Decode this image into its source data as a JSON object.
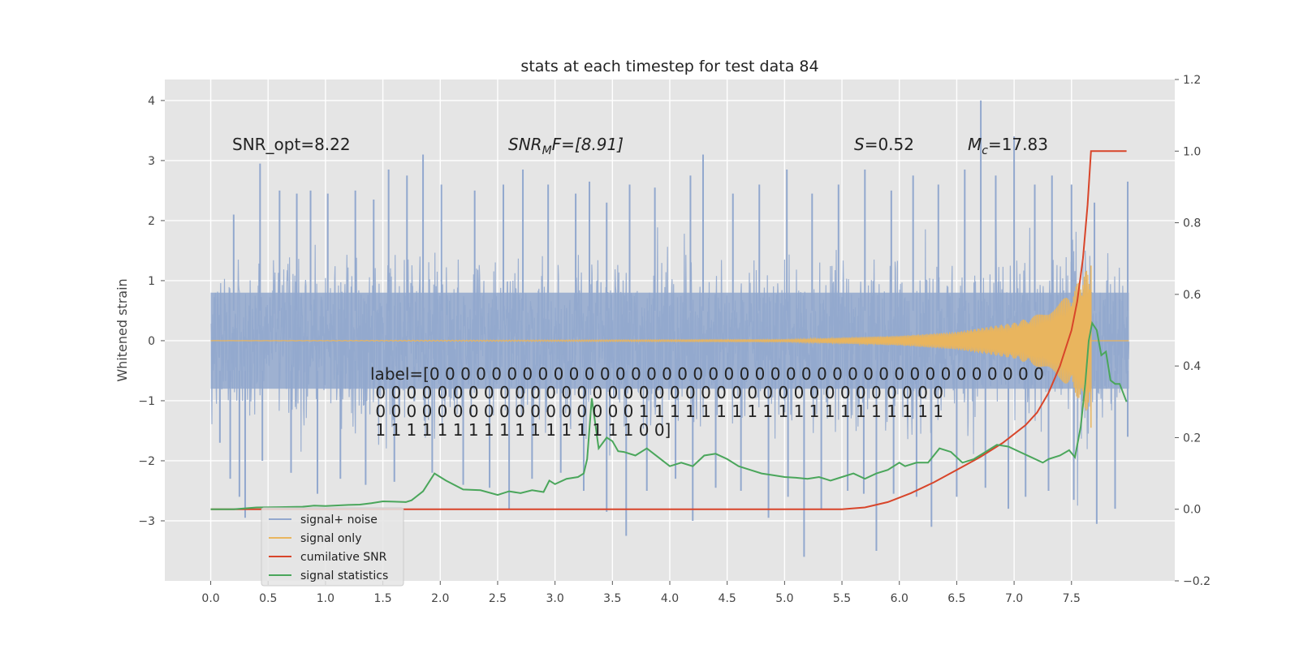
{
  "chart_data": {
    "type": "line",
    "title": "stats at each timestep for test data 84",
    "xlabel": "",
    "ylabel": "Whitened strain",
    "ylabel_right": "",
    "xlim": [
      -0.4,
      8.4
    ],
    "ylim": [
      -4.0,
      4.35
    ],
    "ylim_right": [
      -0.2,
      1.2
    ],
    "x_ticks": [
      0.0,
      0.5,
      1.0,
      1.5,
      2.0,
      2.5,
      3.0,
      3.5,
      4.0,
      4.5,
      5.0,
      5.5,
      6.0,
      6.5,
      7.0,
      7.5
    ],
    "x_tick_labels": [
      "0.0",
      "0.5",
      "1.0",
      "1.5",
      "2.0",
      "2.5",
      "3.0",
      "3.5",
      "4.0",
      "4.5",
      "5.0",
      "5.5",
      "6.0",
      "6.5",
      "7.0",
      "7.5"
    ],
    "y_ticks": [
      -3,
      -2,
      -1,
      0,
      1,
      2,
      3,
      4
    ],
    "y_tick_labels": [
      "−3",
      "−2",
      "−1",
      "0",
      "1",
      "2",
      "3",
      "4"
    ],
    "y_right_ticks": [
      -0.2,
      0.0,
      0.2,
      0.4,
      0.6,
      0.8,
      1.0,
      1.2
    ],
    "y_right_tick_labels": [
      "−0.2",
      "0.0",
      "0.2",
      "0.4",
      "0.6",
      "0.8",
      "1.0",
      "1.2"
    ],
    "grid": true,
    "legend_position": "lower-left",
    "annotations": {
      "snr_opt": "SNR_opt=8.22",
      "snr_mf_main": "SNR",
      "snr_mf_sub": "M",
      "snr_mf_rest": "F=[8.91]",
      "s_symbol": "S",
      "s_value": "=0.52",
      "mc_symbol": "M",
      "mc_sub": "c",
      "mc_value": "=17.83",
      "label_lines": [
        "label=[0 0 0 0 0 0 0 0 0 0 0 0 0 0 0 0 0 0 0 0 0 0 0 0 0 0 0 0 0 0 0 0 0 0 0 0 0 0 0 0",
        " 0 0 0 0 0 0 0 0 0 0 0 0 0 0 0 0 0 0 0 0 0 0 0 0 0 0 0 0 0 0 0 0 0 0 0 0 0",
        " 0 0 0 0 0 0 0 0 0 0 0 0 0 0 0 0 0 1 1 1 1 1 1 1 1 1 1 1 1 1 1 1 1 1 1 1 1",
        " 1 1 1 1 1 1 1 1 1 1 1 1 1 1 1 1 1 0 0]"
      ]
    },
    "series": [
      {
        "name": "signal+ noise",
        "color": "#92a8ce",
        "axis": "left",
        "style": "noise",
        "x_range": [
          0.0,
          8.0
        ],
        "envelope": [
          -1.0,
          1.0
        ],
        "peak_points": [
          {
            "x": 0.2,
            "y": 2.1
          },
          {
            "x": 0.43,
            "y": 2.95
          },
          {
            "x": 0.6,
            "y": 2.5
          },
          {
            "x": 0.75,
            "y": 2.45
          },
          {
            "x": 0.87,
            "y": 2.5
          },
          {
            "x": 1.02,
            "y": 2.45
          },
          {
            "x": 1.26,
            "y": 2.5
          },
          {
            "x": 1.42,
            "y": 2.35
          },
          {
            "x": 1.55,
            "y": 2.85
          },
          {
            "x": 1.71,
            "y": 2.75
          },
          {
            "x": 1.85,
            "y": 3.1
          },
          {
            "x": 2.01,
            "y": 2.6
          },
          {
            "x": 2.3,
            "y": 2.5
          },
          {
            "x": 2.55,
            "y": 2.6
          },
          {
            "x": 2.72,
            "y": 2.85
          },
          {
            "x": 2.94,
            "y": 2.6
          },
          {
            "x": 3.18,
            "y": 2.45
          },
          {
            "x": 3.3,
            "y": 2.65
          },
          {
            "x": 3.45,
            "y": 2.3
          },
          {
            "x": 3.65,
            "y": 2.6
          },
          {
            "x": 3.87,
            "y": 2.55
          },
          {
            "x": 4.18,
            "y": 2.75
          },
          {
            "x": 4.29,
            "y": 3.1
          },
          {
            "x": 4.55,
            "y": 2.45
          },
          {
            "x": 4.78,
            "y": 2.6
          },
          {
            "x": 5.02,
            "y": 2.85
          },
          {
            "x": 5.24,
            "y": 2.45
          },
          {
            "x": 5.47,
            "y": 2.6
          },
          {
            "x": 5.7,
            "y": 2.85
          },
          {
            "x": 5.93,
            "y": 2.5
          },
          {
            "x": 6.12,
            "y": 2.75
          },
          {
            "x": 6.34,
            "y": 2.6
          },
          {
            "x": 6.57,
            "y": 2.85
          },
          {
            "x": 6.71,
            "y": 4.0
          },
          {
            "x": 6.84,
            "y": 2.75
          },
          {
            "x": 7.0,
            "y": 3.4
          },
          {
            "x": 7.18,
            "y": 2.6
          },
          {
            "x": 7.33,
            "y": 2.75
          },
          {
            "x": 7.5,
            "y": 2.6
          },
          {
            "x": 7.7,
            "y": 2.3
          },
          {
            "x": 7.99,
            "y": 2.65
          }
        ],
        "trough_points": [
          {
            "x": 0.08,
            "y": -1.7
          },
          {
            "x": 0.17,
            "y": -2.3
          },
          {
            "x": 0.25,
            "y": -2.6
          },
          {
            "x": 0.3,
            "y": -2.95
          },
          {
            "x": 0.45,
            "y": -2.0
          },
          {
            "x": 0.7,
            "y": -2.2
          },
          {
            "x": 0.93,
            "y": -2.55
          },
          {
            "x": 1.13,
            "y": -2.3
          },
          {
            "x": 1.35,
            "y": -2.4
          },
          {
            "x": 1.6,
            "y": -2.35
          },
          {
            "x": 1.93,
            "y": -2.2
          },
          {
            "x": 2.2,
            "y": -2.4
          },
          {
            "x": 2.43,
            "y": -2.45
          },
          {
            "x": 2.6,
            "y": -2.8
          },
          {
            "x": 2.8,
            "y": -2.3
          },
          {
            "x": 3.05,
            "y": -2.2
          },
          {
            "x": 3.25,
            "y": -2.5
          },
          {
            "x": 3.45,
            "y": -2.85
          },
          {
            "x": 3.62,
            "y": -3.25
          },
          {
            "x": 3.8,
            "y": -2.5
          },
          {
            "x": 4.05,
            "y": -2.3
          },
          {
            "x": 4.2,
            "y": -3.0
          },
          {
            "x": 4.4,
            "y": -2.45
          },
          {
            "x": 4.62,
            "y": -2.5
          },
          {
            "x": 4.86,
            "y": -2.95
          },
          {
            "x": 5.03,
            "y": -2.6
          },
          {
            "x": 5.17,
            "y": -3.6
          },
          {
            "x": 5.32,
            "y": -2.8
          },
          {
            "x": 5.55,
            "y": -2.5
          },
          {
            "x": 5.69,
            "y": -2.55
          },
          {
            "x": 5.8,
            "y": -3.5
          },
          {
            "x": 5.95,
            "y": -2.55
          },
          {
            "x": 6.15,
            "y": -2.6
          },
          {
            "x": 6.28,
            "y": -3.1
          },
          {
            "x": 6.5,
            "y": -2.6
          },
          {
            "x": 6.75,
            "y": -2.45
          },
          {
            "x": 6.95,
            "y": -2.8
          },
          {
            "x": 7.1,
            "y": -2.6
          },
          {
            "x": 7.3,
            "y": -2.5
          },
          {
            "x": 7.52,
            "y": -2.65
          },
          {
            "x": 7.72,
            "y": -3.05
          },
          {
            "x": 7.88,
            "y": -2.8
          },
          {
            "x": 7.99,
            "y": -1.6
          }
        ]
      },
      {
        "name": "signal only",
        "color": "#e9b55e",
        "axis": "left",
        "style": "chirp",
        "x_range": [
          0.0,
          7.67
        ],
        "amplitude_envelope": [
          {
            "x": 0.0,
            "y": 0.0
          },
          {
            "x": 5.0,
            "y": 0.02
          },
          {
            "x": 6.0,
            "y": 0.08
          },
          {
            "x": 6.5,
            "y": 0.15
          },
          {
            "x": 7.0,
            "y": 0.3
          },
          {
            "x": 7.3,
            "y": 0.5
          },
          {
            "x": 7.5,
            "y": 0.8
          },
          {
            "x": 7.6,
            "y": 1.1
          },
          {
            "x": 7.66,
            "y": 1.25
          },
          {
            "x": 7.67,
            "y": 0.0
          },
          {
            "x": 8.0,
            "y": 0.0
          }
        ]
      },
      {
        "name": "cumilative SNR",
        "color": "#d8452a",
        "axis": "right",
        "style": "line",
        "points": [
          {
            "x": 0.0,
            "y": 0.0
          },
          {
            "x": 5.5,
            "y": 0.0
          },
          {
            "x": 5.7,
            "y": 0.005
          },
          {
            "x": 5.9,
            "y": 0.02
          },
          {
            "x": 6.1,
            "y": 0.045
          },
          {
            "x": 6.3,
            "y": 0.075
          },
          {
            "x": 6.5,
            "y": 0.11
          },
          {
            "x": 6.7,
            "y": 0.145
          },
          {
            "x": 6.9,
            "y": 0.185
          },
          {
            "x": 7.1,
            "y": 0.235
          },
          {
            "x": 7.2,
            "y": 0.27
          },
          {
            "x": 7.3,
            "y": 0.325
          },
          {
            "x": 7.4,
            "y": 0.4
          },
          {
            "x": 7.5,
            "y": 0.5
          },
          {
            "x": 7.55,
            "y": 0.58
          },
          {
            "x": 7.6,
            "y": 0.7
          },
          {
            "x": 7.64,
            "y": 0.85
          },
          {
            "x": 7.67,
            "y": 1.0
          },
          {
            "x": 7.98,
            "y": 1.0
          }
        ]
      },
      {
        "name": "signal statistics",
        "color": "#4aa65b",
        "axis": "right",
        "style": "line",
        "points": [
          {
            "x": 0.0,
            "y": 0.0
          },
          {
            "x": 0.2,
            "y": 0.0
          },
          {
            "x": 0.4,
            "y": 0.005
          },
          {
            "x": 0.6,
            "y": 0.006
          },
          {
            "x": 0.8,
            "y": 0.007
          },
          {
            "x": 0.9,
            "y": 0.01
          },
          {
            "x": 1.0,
            "y": 0.009
          },
          {
            "x": 1.2,
            "y": 0.012
          },
          {
            "x": 1.3,
            "y": 0.013
          },
          {
            "x": 1.4,
            "y": 0.017
          },
          {
            "x": 1.5,
            "y": 0.022
          },
          {
            "x": 1.6,
            "y": 0.021
          },
          {
            "x": 1.7,
            "y": 0.02
          },
          {
            "x": 1.75,
            "y": 0.025
          },
          {
            "x": 1.85,
            "y": 0.05
          },
          {
            "x": 1.95,
            "y": 0.1
          },
          {
            "x": 2.05,
            "y": 0.08
          },
          {
            "x": 2.2,
            "y": 0.055
          },
          {
            "x": 2.35,
            "y": 0.053
          },
          {
            "x": 2.5,
            "y": 0.04
          },
          {
            "x": 2.6,
            "y": 0.05
          },
          {
            "x": 2.7,
            "y": 0.045
          },
          {
            "x": 2.8,
            "y": 0.053
          },
          {
            "x": 2.9,
            "y": 0.048
          },
          {
            "x": 2.95,
            "y": 0.08
          },
          {
            "x": 3.0,
            "y": 0.07
          },
          {
            "x": 3.1,
            "y": 0.085
          },
          {
            "x": 3.2,
            "y": 0.09
          },
          {
            "x": 3.25,
            "y": 0.1
          },
          {
            "x": 3.28,
            "y": 0.14
          },
          {
            "x": 3.32,
            "y": 0.31
          },
          {
            "x": 3.38,
            "y": 0.17
          },
          {
            "x": 3.45,
            "y": 0.2
          },
          {
            "x": 3.5,
            "y": 0.19
          },
          {
            "x": 3.55,
            "y": 0.162
          },
          {
            "x": 3.6,
            "y": 0.16
          },
          {
            "x": 3.7,
            "y": 0.15
          },
          {
            "x": 3.8,
            "y": 0.17
          },
          {
            "x": 3.9,
            "y": 0.145
          },
          {
            "x": 4.0,
            "y": 0.12
          },
          {
            "x": 4.1,
            "y": 0.13
          },
          {
            "x": 4.2,
            "y": 0.12
          },
          {
            "x": 4.3,
            "y": 0.15
          },
          {
            "x": 4.4,
            "y": 0.155
          },
          {
            "x": 4.5,
            "y": 0.14
          },
          {
            "x": 4.6,
            "y": 0.12
          },
          {
            "x": 4.7,
            "y": 0.11
          },
          {
            "x": 4.8,
            "y": 0.1
          },
          {
            "x": 4.9,
            "y": 0.095
          },
          {
            "x": 5.0,
            "y": 0.09
          },
          {
            "x": 5.1,
            "y": 0.088
          },
          {
            "x": 5.2,
            "y": 0.085
          },
          {
            "x": 5.3,
            "y": 0.09
          },
          {
            "x": 5.4,
            "y": 0.08
          },
          {
            "x": 5.5,
            "y": 0.09
          },
          {
            "x": 5.6,
            "y": 0.1
          },
          {
            "x": 5.7,
            "y": 0.085
          },
          {
            "x": 5.8,
            "y": 0.1
          },
          {
            "x": 5.9,
            "y": 0.11
          },
          {
            "x": 6.0,
            "y": 0.13
          },
          {
            "x": 6.05,
            "y": 0.12
          },
          {
            "x": 6.15,
            "y": 0.13
          },
          {
            "x": 6.25,
            "y": 0.13
          },
          {
            "x": 6.35,
            "y": 0.17
          },
          {
            "x": 6.45,
            "y": 0.16
          },
          {
            "x": 6.55,
            "y": 0.13
          },
          {
            "x": 6.65,
            "y": 0.14
          },
          {
            "x": 6.75,
            "y": 0.16
          },
          {
            "x": 6.85,
            "y": 0.18
          },
          {
            "x": 6.95,
            "y": 0.175
          },
          {
            "x": 7.05,
            "y": 0.16
          },
          {
            "x": 7.15,
            "y": 0.145
          },
          {
            "x": 7.25,
            "y": 0.13
          },
          {
            "x": 7.3,
            "y": 0.14
          },
          {
            "x": 7.4,
            "y": 0.15
          },
          {
            "x": 7.48,
            "y": 0.165
          },
          {
            "x": 7.53,
            "y": 0.145
          },
          {
            "x": 7.58,
            "y": 0.23
          },
          {
            "x": 7.62,
            "y": 0.35
          },
          {
            "x": 7.65,
            "y": 0.47
          },
          {
            "x": 7.68,
            "y": 0.52
          },
          {
            "x": 7.72,
            "y": 0.5
          },
          {
            "x": 7.76,
            "y": 0.43
          },
          {
            "x": 7.8,
            "y": 0.44
          },
          {
            "x": 7.84,
            "y": 0.36
          },
          {
            "x": 7.88,
            "y": 0.35
          },
          {
            "x": 7.92,
            "y": 0.35
          },
          {
            "x": 7.98,
            "y": 0.3
          }
        ]
      }
    ]
  }
}
